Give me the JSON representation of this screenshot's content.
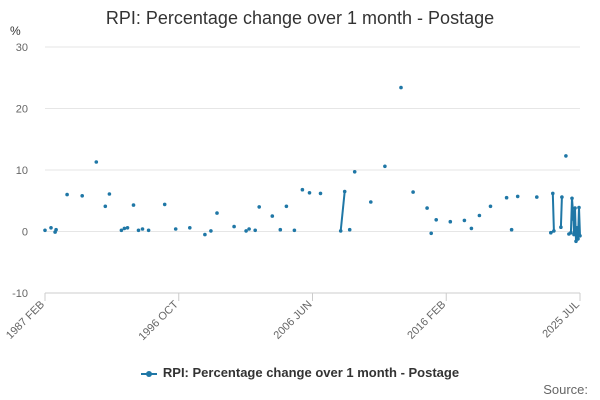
{
  "chart_data": {
    "type": "line",
    "title": "RPI: Percentage change over 1 month - Postage",
    "yunit": "%",
    "ylim": [
      -10,
      30
    ],
    "yticks": [
      30,
      20,
      10,
      0,
      -10
    ],
    "xticks": [
      "1987 FEB",
      "1996 OCT",
      "2006 JUN",
      "2016 FEB",
      "2025 JUL"
    ],
    "grid": true,
    "legend_position": "bottom",
    "source_label": "Source:",
    "series": [
      {
        "name": "RPI: Percentage change over 1 month - Postage",
        "color": "#1f77a6",
        "segments": [
          [
            [
              1987.0,
              0.2
            ]
          ],
          [
            [
              1987.6,
              0.6
            ]
          ],
          [
            [
              1988.0,
              -0.1
            ]
          ],
          [
            [
              1988.1,
              0.3
            ]
          ],
          [
            [
              1989.2,
              6.0
            ]
          ],
          [
            [
              1990.7,
              5.8
            ]
          ],
          [
            [
              1992.1,
              11.3
            ]
          ],
          [
            [
              1993.0,
              4.1
            ]
          ],
          [
            [
              1993.4,
              6.1
            ]
          ],
          [
            [
              1994.6,
              0.2
            ]
          ],
          [
            [
              1994.9,
              0.5
            ]
          ],
          [
            [
              1995.2,
              0.6
            ]
          ],
          [
            [
              1995.8,
              4.3
            ]
          ],
          [
            [
              1996.3,
              0.2
            ]
          ],
          [
            [
              1996.7,
              0.4
            ]
          ],
          [
            [
              1997.3,
              0.2
            ]
          ],
          [
            [
              1998.9,
              4.4
            ]
          ],
          [
            [
              2000.0,
              0.4
            ]
          ],
          [
            [
              2001.4,
              0.6
            ]
          ],
          [
            [
              2002.9,
              -0.5
            ]
          ],
          [
            [
              2003.5,
              0.1
            ]
          ],
          [
            [
              2004.1,
              3.0
            ]
          ],
          [
            [
              2005.8,
              0.8
            ]
          ],
          [
            [
              2007.0,
              0.1
            ]
          ],
          [
            [
              2007.3,
              0.4
            ]
          ],
          [
            [
              2007.9,
              0.2
            ]
          ],
          [
            [
              2008.3,
              4.0
            ]
          ],
          [
            [
              2009.6,
              2.5
            ]
          ],
          [
            [
              2010.4,
              0.3
            ]
          ],
          [
            [
              2011.0,
              4.1
            ]
          ],
          [
            [
              2011.8,
              0.2
            ]
          ],
          [
            [
              2012.6,
              6.8
            ]
          ],
          [
            [
              2013.3,
              6.3
            ]
          ],
          [
            [
              2014.4,
              6.2
            ]
          ],
          [
            [
              2016.4,
              0.1
            ],
            [
              2016.8,
              6.5
            ]
          ],
          [
            [
              2017.3,
              0.3
            ]
          ],
          [
            [
              2017.8,
              9.7
            ]
          ],
          [
            [
              2019.4,
              4.8
            ]
          ],
          [
            [
              2020.8,
              10.6
            ]
          ],
          [
            [
              2022.4,
              23.4
            ]
          ],
          [
            [
              2023.6,
              6.4
            ]
          ],
          [
            [
              2025.0,
              3.8
            ]
          ],
          [
            [
              2025.4,
              -0.3
            ]
          ],
          [
            [
              2025.9,
              1.9
            ]
          ],
          [
            [
              2027.3,
              1.6
            ]
          ],
          [
            [
              2028.7,
              1.8
            ]
          ],
          [
            [
              2029.4,
              0.5
            ]
          ],
          [
            [
              2030.2,
              2.6
            ]
          ],
          [
            [
              2031.3,
              4.1
            ]
          ],
          [
            [
              2032.9,
              5.5
            ]
          ],
          [
            [
              2033.4,
              0.3
            ]
          ],
          [
            [
              2034.0,
              5.7
            ]
          ],
          [
            [
              2035.9,
              5.6
            ]
          ],
          [
            [
              2037.3,
              -0.2
            ],
            [
              2037.6,
              0.1
            ],
            [
              2037.5,
              6.2
            ]
          ],
          [
            [
              2038.3,
              0.7
            ],
            [
              2038.4,
              5.6
            ]
          ],
          [
            [
              2038.8,
              12.3
            ]
          ],
          [
            [
              2039.1,
              -0.4
            ],
            [
              2039.3,
              -0.2
            ],
            [
              2039.4,
              5.4
            ],
            [
              2039.55,
              2.0
            ],
            [
              2039.6,
              -0.5
            ],
            [
              2039.7,
              3.8
            ],
            [
              2039.8,
              -1.6
            ],
            [
              2039.9,
              0.6
            ],
            [
              2040.0,
              -1.2
            ],
            [
              2040.1,
              3.9
            ],
            [
              2040.2,
              -0.7
            ]
          ]
        ]
      }
    ]
  }
}
